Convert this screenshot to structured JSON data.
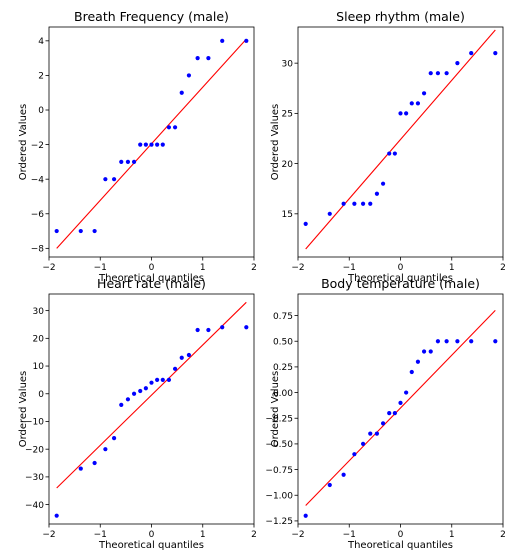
{
  "chart_data": [
    {
      "type": "scatter",
      "title": "Breath Frequency (male)",
      "xlabel": "Theoretical quantiles",
      "ylabel": "Ordered Values",
      "xlim": [
        -2,
        2
      ],
      "ylim": [
        -8.5,
        4.8
      ],
      "xticks": [
        -2,
        -1,
        0,
        1,
        2
      ],
      "yticks": [
        -8,
        -6,
        -4,
        -2,
        0,
        2,
        4
      ],
      "grid": false,
      "series": [
        {
          "marker_color": "#0000ff",
          "x": [
            -1.85,
            -1.38,
            -1.11,
            -0.9,
            -0.73,
            -0.59,
            -0.46,
            -0.34,
            -0.22,
            -0.11,
            0.0,
            0.11,
            0.22,
            0.34,
            0.46,
            0.59,
            0.73,
            0.9,
            1.11,
            1.38,
            1.85
          ],
          "y": [
            -7,
            -7,
            -7,
            -4,
            -4,
            -3,
            -3,
            -3,
            -2,
            -2,
            -2,
            -2,
            -2,
            -1,
            -1,
            1,
            2,
            3,
            3,
            4,
            4
          ]
        }
      ],
      "fit_line": {
        "color": "#ff0000",
        "x": [
          -1.85,
          1.85
        ],
        "y": [
          -8.0,
          4.1
        ]
      }
    },
    {
      "type": "scatter",
      "title": "Sleep rhythm (male)",
      "xlabel": "Theoretical quantiles",
      "ylabel": "Ordered Values",
      "xlim": [
        -2,
        2
      ],
      "ylim": [
        10.7,
        33.6
      ],
      "xticks": [
        -2,
        -1,
        0,
        1,
        2
      ],
      "yticks": [
        15,
        20,
        25,
        30
      ],
      "grid": false,
      "series": [
        {
          "marker_color": "#0000ff",
          "x": [
            -1.85,
            -1.38,
            -1.11,
            -0.9,
            -0.73,
            -0.59,
            -0.46,
            -0.34,
            -0.22,
            -0.11,
            0.0,
            0.11,
            0.22,
            0.34,
            0.46,
            0.59,
            0.73,
            0.9,
            1.11,
            1.38,
            1.85
          ],
          "y": [
            14,
            15,
            16,
            16,
            16,
            16,
            17,
            18,
            21,
            21,
            25,
            25,
            26,
            26,
            27,
            29,
            29,
            29,
            30,
            31,
            31
          ]
        }
      ],
      "fit_line": {
        "color": "#ff0000",
        "x": [
          -1.85,
          1.85
        ],
        "y": [
          11.5,
          33.3
        ]
      }
    },
    {
      "type": "scatter",
      "title": "Heart rate (male)",
      "xlabel": "Theoretical quantiles",
      "ylabel": "Ordered Values",
      "xlim": [
        -2,
        2
      ],
      "ylim": [
        -47,
        36
      ],
      "xticks": [
        -2,
        -1,
        0,
        1,
        2
      ],
      "yticks": [
        -40,
        -30,
        -20,
        -10,
        0,
        10,
        20,
        30
      ],
      "grid": false,
      "series": [
        {
          "marker_color": "#0000ff",
          "x": [
            -1.85,
            -1.38,
            -1.11,
            -0.9,
            -0.73,
            -0.59,
            -0.46,
            -0.34,
            -0.22,
            -0.11,
            0.0,
            0.11,
            0.22,
            0.34,
            0.46,
            0.59,
            0.73,
            0.9,
            1.11,
            1.38,
            1.85
          ],
          "y": [
            -44,
            -27,
            -25,
            -20,
            -16,
            -4,
            -2,
            0,
            1,
            2,
            4,
            5,
            5,
            5,
            9,
            13,
            14,
            23,
            23,
            24,
            24
          ]
        }
      ],
      "fit_line": {
        "color": "#ff0000",
        "x": [
          -1.85,
          1.85
        ],
        "y": [
          -34,
          33
        ]
      }
    },
    {
      "type": "scatter",
      "title": "Body temperature (male)",
      "xlabel": "Theoretical quantiles",
      "ylabel": "Ordered Values",
      "xlim": [
        -2,
        2
      ],
      "ylim": [
        -1.28,
        0.96
      ],
      "xticks": [
        -2,
        -1,
        0,
        1,
        2
      ],
      "yticks": [
        -1.25,
        -1.0,
        -0.75,
        -0.5,
        -0.25,
        0.0,
        0.25,
        0.5,
        0.75
      ],
      "ytick_labels": [
        "−1.25",
        "−1.00",
        "−0.75",
        "−0.50",
        "−0.25",
        "0.00",
        "0.25",
        "0.50",
        "0.75"
      ],
      "grid": false,
      "series": [
        {
          "marker_color": "#0000ff",
          "x": [
            -1.85,
            -1.38,
            -1.11,
            -0.9,
            -0.73,
            -0.59,
            -0.46,
            -0.34,
            -0.22,
            -0.11,
            0.0,
            0.11,
            0.22,
            0.34,
            0.46,
            0.59,
            0.73,
            0.9,
            1.11,
            1.38,
            1.85
          ],
          "y": [
            -1.2,
            -0.9,
            -0.8,
            -0.6,
            -0.5,
            -0.4,
            -0.4,
            -0.3,
            -0.2,
            -0.2,
            -0.1,
            0.0,
            0.2,
            0.3,
            0.4,
            0.4,
            0.5,
            0.5,
            0.5,
            0.5,
            0.5
          ]
        }
      ],
      "fit_line": {
        "color": "#ff0000",
        "x": [
          -1.85,
          1.85
        ],
        "y": [
          -1.1,
          0.8
        ]
      }
    }
  ]
}
